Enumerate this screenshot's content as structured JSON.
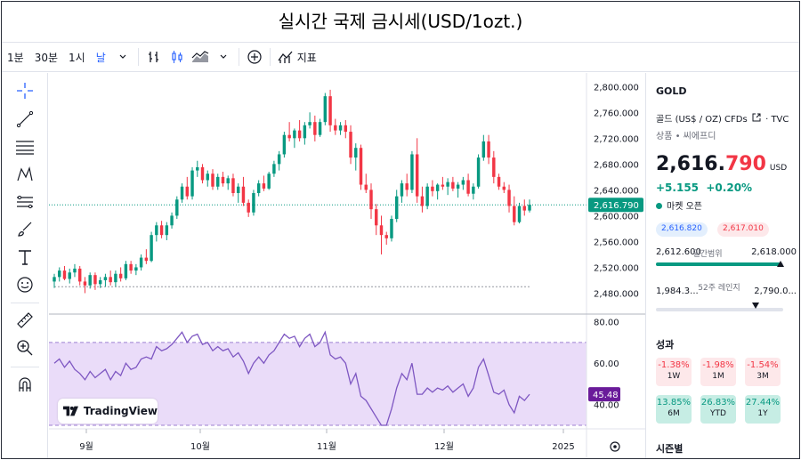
{
  "title": "실시간 국제 금시세(USD/1ozt.)",
  "toolbar": {
    "intervals": [
      "1분",
      "30분",
      "1시",
      "날"
    ],
    "active_interval": "날",
    "indicators_label": "지표"
  },
  "left_tools": [
    "crosshair-icon",
    "trend-line-icon",
    "fib-icon",
    "pattern-icon",
    "forecast-icon",
    "brush-icon",
    "text-icon",
    "emoji-icon",
    "ruler-icon",
    "zoom-icon",
    "magnet-icon"
  ],
  "chart": {
    "price_ticks": [
      "2,800.000",
      "2,760.000",
      "2,720.000",
      "2,680.000",
      "2,640.000",
      "2,600.000",
      "2,560.000",
      "2,520.000",
      "2,480.000"
    ],
    "price_values": [
      2800,
      2760,
      2720,
      2680,
      2640,
      2600,
      2560,
      2520,
      2480
    ],
    "last_price_label": "2,616.790",
    "last_price": 2616.79,
    "rsi_ticks": [
      "80.00",
      "60.00",
      "40.00"
    ],
    "rsi_label": "45.48",
    "time_labels": [
      "9월",
      "10월",
      "11월",
      "12월",
      "2025"
    ],
    "logo_text": "TradingView",
    "colors": {
      "up": "#089981",
      "down": "#f23645",
      "rsi": "#7e57c2",
      "rsi_band": "#e1cdf7"
    }
  },
  "chart_data": {
    "type": "candlestick",
    "candles": [
      [
        2498,
        2510,
        2488,
        2505
      ],
      [
        2505,
        2520,
        2498,
        2515
      ],
      [
        2515,
        2522,
        2500,
        2502
      ],
      [
        2502,
        2518,
        2495,
        2512
      ],
      [
        2512,
        2525,
        2505,
        2518
      ],
      [
        2518,
        2522,
        2492,
        2498
      ],
      [
        2498,
        2505,
        2480,
        2492
      ],
      [
        2492,
        2512,
        2487,
        2508
      ],
      [
        2508,
        2512,
        2485,
        2494
      ],
      [
        2494,
        2505,
        2488,
        2500
      ],
      [
        2500,
        2510,
        2490,
        2505
      ],
      [
        2505,
        2515,
        2492,
        2497
      ],
      [
        2497,
        2515,
        2490,
        2510
      ],
      [
        2510,
        2520,
        2498,
        2503
      ],
      [
        2503,
        2530,
        2500,
        2525
      ],
      [
        2525,
        2530,
        2510,
        2515
      ],
      [
        2515,
        2525,
        2508,
        2520
      ],
      [
        2520,
        2540,
        2515,
        2535
      ],
      [
        2535,
        2548,
        2525,
        2530
      ],
      [
        2530,
        2575,
        2528,
        2570
      ],
      [
        2570,
        2590,
        2560,
        2585
      ],
      [
        2585,
        2592,
        2565,
        2570
      ],
      [
        2570,
        2590,
        2562,
        2585
      ],
      [
        2585,
        2605,
        2580,
        2600
      ],
      [
        2600,
        2630,
        2595,
        2625
      ],
      [
        2625,
        2650,
        2620,
        2645
      ],
      [
        2645,
        2660,
        2625,
        2630
      ],
      [
        2630,
        2675,
        2625,
        2670
      ],
      [
        2670,
        2685,
        2660,
        2675
      ],
      [
        2675,
        2680,
        2650,
        2655
      ],
      [
        2655,
        2670,
        2645,
        2665
      ],
      [
        2665,
        2672,
        2640,
        2645
      ],
      [
        2645,
        2665,
        2640,
        2660
      ],
      [
        2660,
        2668,
        2645,
        2650
      ],
      [
        2650,
        2662,
        2640,
        2658
      ],
      [
        2658,
        2665,
        2630,
        2635
      ],
      [
        2635,
        2650,
        2620,
        2645
      ],
      [
        2645,
        2660,
        2615,
        2620
      ],
      [
        2620,
        2625,
        2598,
        2605
      ],
      [
        2605,
        2640,
        2600,
        2635
      ],
      [
        2635,
        2655,
        2630,
        2650
      ],
      [
        2650,
        2662,
        2638,
        2642
      ],
      [
        2642,
        2668,
        2640,
        2665
      ],
      [
        2665,
        2685,
        2660,
        2680
      ],
      [
        2680,
        2700,
        2670,
        2695
      ],
      [
        2695,
        2730,
        2690,
        2725
      ],
      [
        2725,
        2745,
        2715,
        2720
      ],
      [
        2720,
        2735,
        2705,
        2732
      ],
      [
        2732,
        2748,
        2715,
        2720
      ],
      [
        2720,
        2745,
        2710,
        2740
      ],
      [
        2740,
        2760,
        2735,
        2745
      ],
      [
        2745,
        2755,
        2715,
        2725
      ],
      [
        2725,
        2750,
        2722,
        2745
      ],
      [
        2745,
        2790,
        2740,
        2785
      ],
      [
        2785,
        2795,
        2730,
        2740
      ],
      [
        2740,
        2750,
        2725,
        2732
      ],
      [
        2732,
        2745,
        2725,
        2740
      ],
      [
        2740,
        2748,
        2720,
        2730
      ],
      [
        2730,
        2740,
        2680,
        2690
      ],
      [
        2690,
        2712,
        2670,
        2705
      ],
      [
        2705,
        2710,
        2640,
        2648
      ],
      [
        2648,
        2665,
        2635,
        2640
      ],
      [
        2640,
        2650,
        2595,
        2610
      ],
      [
        2610,
        2618,
        2570,
        2585
      ],
      [
        2585,
        2600,
        2540,
        2570
      ],
      [
        2570,
        2575,
        2555,
        2565
      ],
      [
        2565,
        2600,
        2560,
        2595
      ],
      [
        2595,
        2640,
        2590,
        2630
      ],
      [
        2630,
        2655,
        2620,
        2650
      ],
      [
        2650,
        2665,
        2630,
        2640
      ],
      [
        2640,
        2700,
        2635,
        2695
      ],
      [
        2695,
        2720,
        2620,
        2630
      ],
      [
        2630,
        2645,
        2605,
        2615
      ],
      [
        2615,
        2650,
        2610,
        2645
      ],
      [
        2645,
        2655,
        2630,
        2638
      ],
      [
        2638,
        2650,
        2625,
        2648
      ],
      [
        2648,
        2660,
        2640,
        2645
      ],
      [
        2645,
        2658,
        2632,
        2652
      ],
      [
        2652,
        2660,
        2638,
        2642
      ],
      [
        2642,
        2652,
        2628,
        2648
      ],
      [
        2648,
        2660,
        2640,
        2655
      ],
      [
        2655,
        2665,
        2630,
        2634
      ],
      [
        2634,
        2650,
        2625,
        2645
      ],
      [
        2645,
        2695,
        2642,
        2690
      ],
      [
        2690,
        2725,
        2685,
        2715
      ],
      [
        2715,
        2725,
        2680,
        2690
      ],
      [
        2690,
        2700,
        2650,
        2660
      ],
      [
        2660,
        2665,
        2640,
        2645
      ],
      [
        2645,
        2652,
        2635,
        2640
      ],
      [
        2640,
        2648,
        2605,
        2615
      ],
      [
        2615,
        2630,
        2585,
        2590
      ],
      [
        2590,
        2620,
        2588,
        2615
      ],
      [
        2615,
        2625,
        2600,
        2608
      ],
      [
        2608,
        2625,
        2605,
        2617
      ]
    ],
    "rsi": [
      60,
      62,
      58,
      61,
      57,
      55,
      52,
      56,
      53,
      55,
      57,
      52,
      56,
      54,
      60,
      57,
      58,
      62,
      63,
      62,
      68,
      66,
      67,
      69,
      72,
      75,
      70,
      73,
      74,
      69,
      70,
      66,
      68,
      66,
      67,
      63,
      65,
      61,
      55,
      60,
      63,
      60,
      64,
      66,
      70,
      74,
      72,
      73,
      68,
      72,
      74,
      68,
      70,
      75,
      64,
      62,
      63,
      60,
      50,
      55,
      44,
      42,
      38,
      34,
      30,
      30,
      38,
      48,
      55,
      52,
      60,
      45,
      45,
      48,
      46,
      48,
      47,
      49,
      46,
      48,
      50,
      44,
      48,
      58,
      62,
      54,
      46,
      45,
      47,
      40,
      36,
      44,
      42,
      45
    ],
    "price_range": [
      2460,
      2810
    ],
    "rsi_range": [
      30,
      85
    ]
  },
  "side": {
    "symbol": "GOLD",
    "description": "골드 (US$ / OZ) CFDs",
    "source": "TVC",
    "category": "상품 • 씨에프디",
    "price_int": "2,616.",
    "price_dec": "790",
    "currency": "USD",
    "change": "+5.155",
    "change_pct": "+0.20%",
    "market_status": "마켓 오픈",
    "bid": "2,616.820",
    "ask": "2,617.010",
    "day_low": "2,612.600",
    "day_label": "일간범위",
    "day_high": "2,618.000",
    "day_position": 0.98,
    "wk52_low": "1,984.3...",
    "wk52_label": "52주 레인지",
    "wk52_high": "2,790.0...",
    "wk52_position": 0.78,
    "perf_title": "성과",
    "performance": [
      {
        "value": "-1.38%",
        "period": "1W",
        "dir": "neg"
      },
      {
        "value": "-1.98%",
        "period": "1M",
        "dir": "neg"
      },
      {
        "value": "-1.54%",
        "period": "3M",
        "dir": "neg"
      },
      {
        "value": "13.85%",
        "period": "6M",
        "dir": "pos"
      },
      {
        "value": "26.83%",
        "period": "YTD",
        "dir": "pos"
      },
      {
        "value": "27.44%",
        "period": "1Y",
        "dir": "pos"
      }
    ],
    "session_title": "시즌별"
  }
}
